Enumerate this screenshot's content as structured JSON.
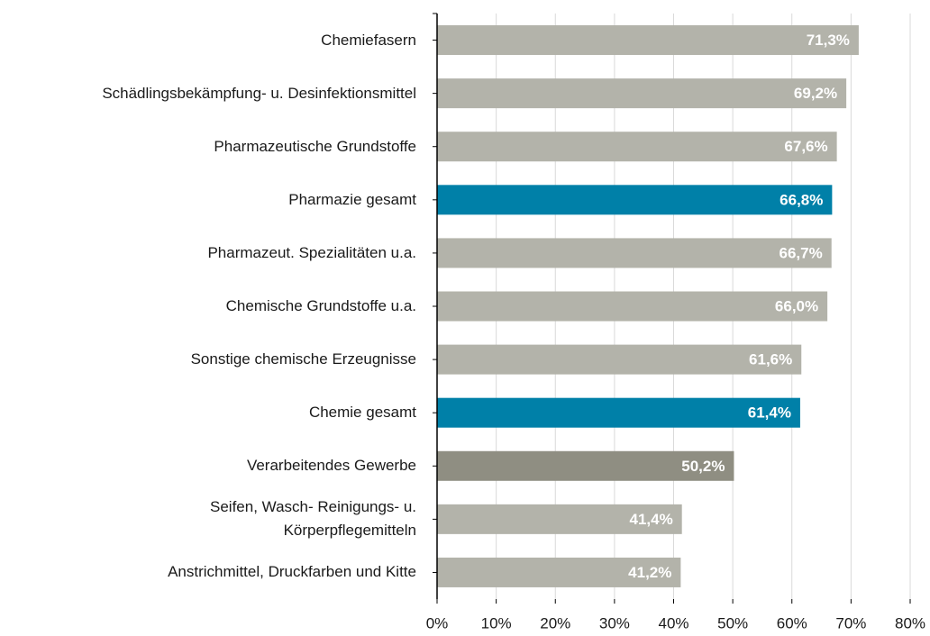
{
  "chart_data": {
    "type": "bar",
    "orientation": "horizontal",
    "categories": [
      "Chemiefasern",
      "Schädlingsbekämpfung- u. Desinfektionsmittel",
      "Pharmazeutische Grundstoffe",
      "Pharmazie gesamt",
      "Pharmazeut. Spezialitäten u.a.",
      "Chemische Grundstoffe u.a.",
      "Sonstige chemische Erzeugnisse",
      "Chemie gesamt",
      "Verarbeitendes Gewerbe",
      "Seifen, Wasch- Reinigungs- u.\nKörperpflegemitteln",
      "Anstrichmittel, Druckfarben und Kitte"
    ],
    "values": [
      71.3,
      69.2,
      67.6,
      66.8,
      66.7,
      66.0,
      61.6,
      61.4,
      50.2,
      41.4,
      41.2
    ],
    "value_labels": [
      "71,3%",
      "69,2%",
      "67,6%",
      "66,8%",
      "66,7%",
      "66,0%",
      "61,6%",
      "61,4%",
      "50,2%",
      "41,4%",
      "41,2%"
    ],
    "colors": [
      "#b3b3aa",
      "#b3b3aa",
      "#b3b3aa",
      "#0080a8",
      "#b3b3aa",
      "#b3b3aa",
      "#b3b3aa",
      "#0080a8",
      "#8f8e82",
      "#b3b3aa",
      "#b3b3aa"
    ],
    "xlim": [
      0,
      80
    ],
    "xticks": [
      {
        "value": 0,
        "label": "0%"
      },
      {
        "value": 10,
        "label": "10%"
      },
      {
        "value": 20,
        "label": "20%"
      },
      {
        "value": 30,
        "label": "30%"
      },
      {
        "value": 40,
        "label": "40%"
      },
      {
        "value": 50,
        "label": "50%"
      },
      {
        "value": 60,
        "label": "60%"
      },
      {
        "value": 70,
        "label": "70%"
      },
      {
        "value": 80,
        "label": "80%"
      }
    ],
    "grid": true
  }
}
